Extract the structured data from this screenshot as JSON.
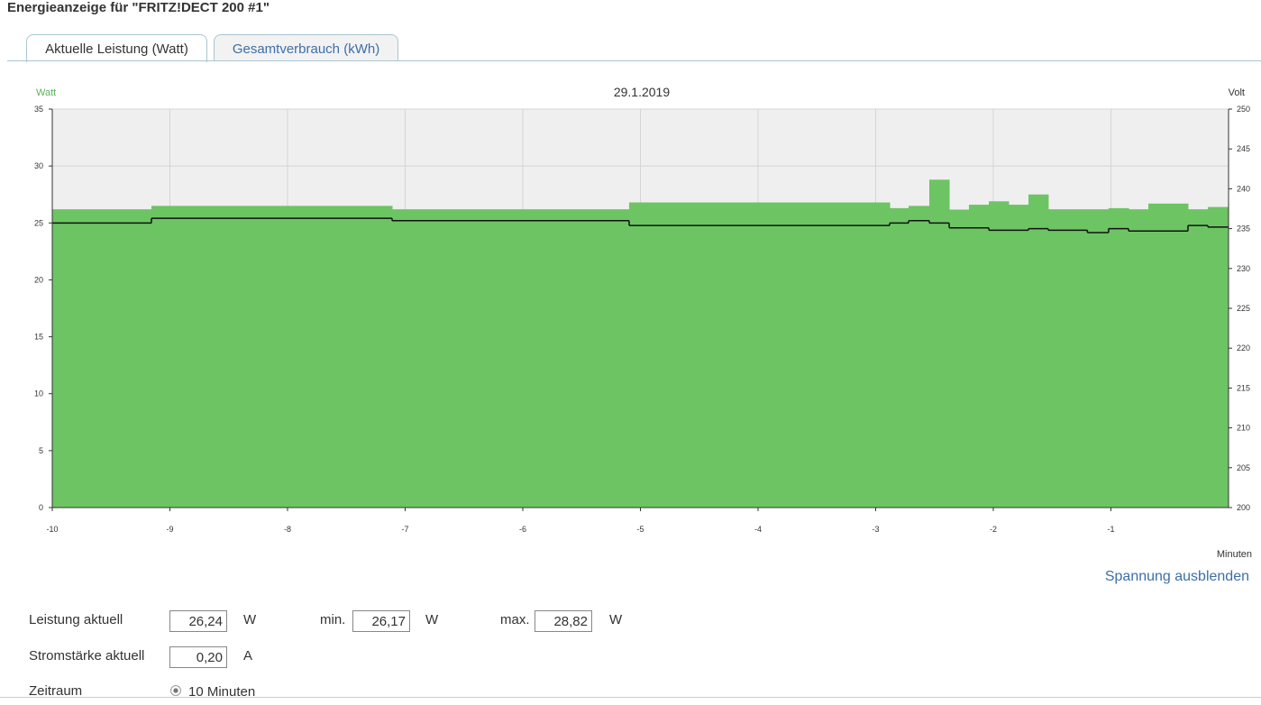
{
  "header": {
    "title": "Energieanzeige für \"FRITZ!DECT 200 #1\""
  },
  "tabs": [
    "Aktuelle Leistung (Watt)",
    "Gesamtverbrauch (kWh)"
  ],
  "chart_data": {
    "type": "step",
    "title": "29.1.2019",
    "ylabel": "Watt",
    "y2label": "Volt",
    "xlabel": "Minuten",
    "xlim": [
      -10,
      0
    ],
    "xticks": [
      -10,
      -9,
      -8,
      -7,
      -6,
      -5,
      -4,
      -3,
      -2,
      -1
    ],
    "ylim": [
      0,
      35
    ],
    "yticks": [
      0,
      5,
      10,
      15,
      20,
      25,
      30,
      35
    ],
    "y2lim": [
      200,
      250
    ],
    "y2ticks": [
      200,
      205,
      210,
      215,
      220,
      225,
      230,
      235,
      240,
      245,
      250
    ],
    "grid": true,
    "series": [
      {
        "color": "#6dc463",
        "style": "area",
        "x": [
          -10,
          -9.157,
          -7.111,
          -5.096,
          -2.881,
          -2.72,
          -2.544,
          -2.375,
          -2.207,
          -2.038,
          -1.87,
          -1.701,
          -1.533,
          -1.02,
          -0.85,
          -0.682,
          -0.345,
          -0.176
        ],
        "values": [
          26.2,
          26.5,
          26.2,
          26.8,
          26.3,
          26.5,
          28.8,
          26.17,
          26.6,
          26.9,
          26.6,
          27.5,
          26.2,
          26.3,
          26.2,
          26.7,
          26.2,
          26.4
        ]
      },
      {
        "color": "#111111",
        "style": "line",
        "axis": "y2",
        "x": [
          -10,
          -9.157,
          -7.111,
          -5.096,
          -2.881,
          -2.72,
          -2.544,
          -2.375,
          -2.038,
          -1.701,
          -1.533,
          -1.2,
          -1.02,
          -0.85,
          -0.345,
          -0.176
        ],
        "values": [
          235.7,
          236.3,
          236.0,
          235.4,
          235.7,
          236.0,
          235.7,
          235.1,
          234.8,
          235.0,
          234.8,
          234.5,
          235.0,
          234.7,
          235.4,
          235.2
        ]
      }
    ]
  },
  "toggle_link": "Spannung ausblenden",
  "form": {
    "rows": [
      {
        "label": "Leistung aktuell",
        "fields": [
          {
            "value": "26,24",
            "unit": "W"
          },
          {
            "prefix": "min.",
            "value": "26,17",
            "unit": "W"
          },
          {
            "prefix": "max.",
            "value": "28,82",
            "unit": "W"
          }
        ]
      },
      {
        "label": "Stromstärke aktuell",
        "fields": [
          {
            "value": "0,20",
            "unit": "A"
          }
        ]
      },
      {
        "label": "Zeitraum",
        "option": "10 Minuten"
      }
    ]
  }
}
